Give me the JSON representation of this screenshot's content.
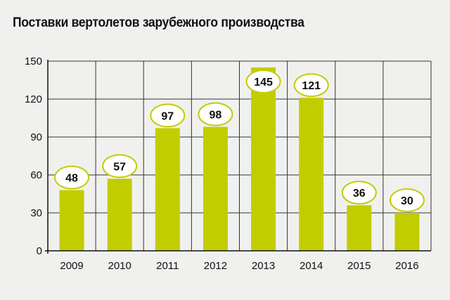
{
  "colors": {
    "bar": "#c2cd00",
    "label_bubble_fill": "#ffffff",
    "label_bubble_stroke": "#c2cd00",
    "grid": "#333333",
    "background": "#f0f0ee"
  },
  "chart_data": {
    "type": "bar",
    "title": "Поставки вертолетов зарубежного производства",
    "xlabel": "",
    "ylabel": "",
    "categories": [
      "2009",
      "2010",
      "2011",
      "2012",
      "2013",
      "2014",
      "2015",
      "2016"
    ],
    "values": [
      48,
      57,
      97,
      98,
      145,
      121,
      36,
      30
    ],
    "value_labels": [
      "48",
      "57",
      "97",
      "98",
      "145",
      "121",
      "36",
      "30"
    ],
    "ylim": [
      0,
      150
    ],
    "yticks": [
      0,
      30,
      60,
      90,
      120,
      150
    ],
    "ytick_labels": [
      "0",
      "30",
      "60",
      "90",
      "120",
      "150"
    ],
    "grid": true,
    "legend": "none"
  }
}
